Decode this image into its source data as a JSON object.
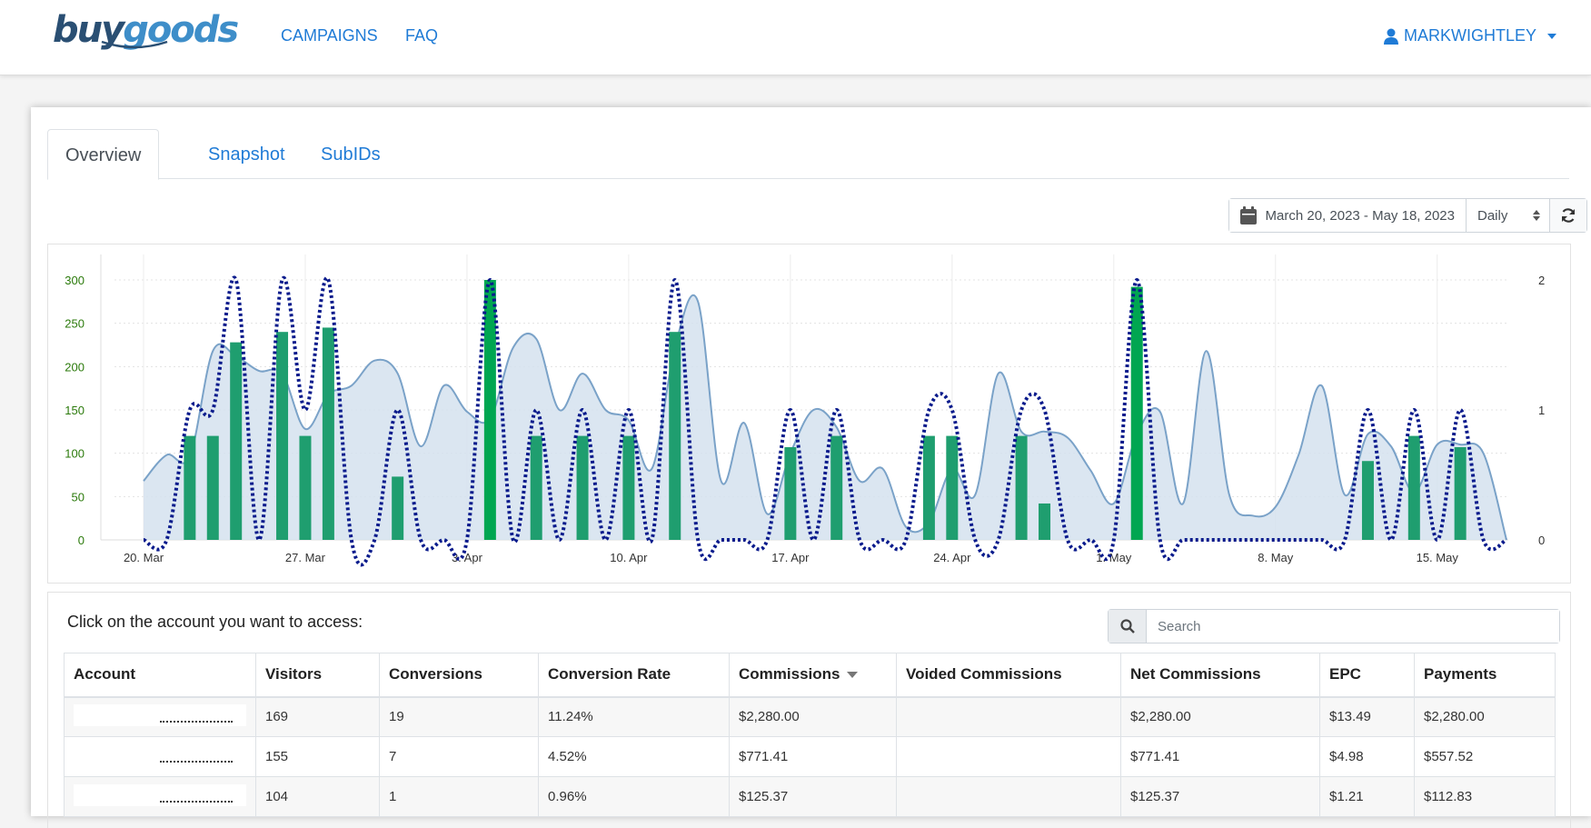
{
  "header": {
    "logo_buy": "buy",
    "logo_goods": "goods",
    "nav": [
      {
        "label": "CAMPAIGNS"
      },
      {
        "label": "FAQ"
      }
    ],
    "user": "MARKWIGHTLEY"
  },
  "tabs": [
    {
      "label": "Overview",
      "active": true
    },
    {
      "label": "Snapshot"
    },
    {
      "label": "SubIDs"
    }
  ],
  "toolbar": {
    "date_range": "March 20, 2023 - May 18, 2023",
    "interval": "Daily"
  },
  "chart_data": {
    "type": "bar",
    "x_start": "2023-03-20",
    "x_end": "2023-05-18",
    "x_ticks": [
      "20. Mar",
      "27. Mar",
      "3. Apr",
      "10. Apr",
      "17. Apr",
      "24. Apr",
      "1. May",
      "8. May",
      "15. May"
    ],
    "y_left_ticks": [
      0,
      50,
      100,
      150,
      200,
      250,
      300
    ],
    "y_left_range": [
      0,
      300
    ],
    "y_right_ticks": [
      0,
      1,
      2
    ],
    "y_right_range": [
      0,
      2
    ],
    "grid": true,
    "colors": {
      "bars": "#1f9e6f",
      "bars_highlight": "#00a651",
      "area_fill": "#d5e2ef",
      "area_line": "#7aa2c8",
      "dotted": "#0a1b8c",
      "left_ticks": "#2b7a0b"
    },
    "series": [
      {
        "type": "column",
        "values": [
          {
            "x": "2023-03-22",
            "y": 120
          },
          {
            "x": "2023-03-23",
            "y": 120
          },
          {
            "x": "2023-03-24",
            "y": 228
          },
          {
            "x": "2023-03-26",
            "y": 240
          },
          {
            "x": "2023-03-27",
            "y": 120
          },
          {
            "x": "2023-03-28",
            "y": 245
          },
          {
            "x": "2023-03-31",
            "y": 73
          },
          {
            "x": "2023-04-04",
            "y": 300
          },
          {
            "x": "2023-04-06",
            "y": 120
          },
          {
            "x": "2023-04-08",
            "y": 120
          },
          {
            "x": "2023-04-10",
            "y": 120
          },
          {
            "x": "2023-04-12",
            "y": 240
          },
          {
            "x": "2023-04-17",
            "y": 107
          },
          {
            "x": "2023-04-19",
            "y": 120
          },
          {
            "x": "2023-04-23",
            "y": 120
          },
          {
            "x": "2023-04-24",
            "y": 120
          },
          {
            "x": "2023-04-27",
            "y": 120
          },
          {
            "x": "2023-04-28",
            "y": 42
          },
          {
            "x": "2023-05-02",
            "y": 292
          },
          {
            "x": "2023-05-12",
            "y": 91
          },
          {
            "x": "2023-05-14",
            "y": 120
          },
          {
            "x": "2023-05-16",
            "y": 107
          }
        ]
      },
      {
        "type": "area",
        "values": [
          {
            "x": "2023-03-20",
            "y": 68
          },
          {
            "x": "2023-03-21",
            "y": 98
          },
          {
            "x": "2023-03-22",
            "y": 96
          },
          {
            "x": "2023-03-23",
            "y": 218
          },
          {
            "x": "2023-03-24",
            "y": 212
          },
          {
            "x": "2023-03-25",
            "y": 195
          },
          {
            "x": "2023-03-26",
            "y": 192
          },
          {
            "x": "2023-03-27",
            "y": 128
          },
          {
            "x": "2023-03-28",
            "y": 168
          },
          {
            "x": "2023-03-29",
            "y": 178
          },
          {
            "x": "2023-03-30",
            "y": 207
          },
          {
            "x": "2023-03-31",
            "y": 192
          },
          {
            "x": "2023-04-01",
            "y": 108
          },
          {
            "x": "2023-04-02",
            "y": 178
          },
          {
            "x": "2023-04-03",
            "y": 148
          },
          {
            "x": "2023-04-04",
            "y": 140
          },
          {
            "x": "2023-04-05",
            "y": 222
          },
          {
            "x": "2023-04-06",
            "y": 232
          },
          {
            "x": "2023-04-07",
            "y": 150
          },
          {
            "x": "2023-04-08",
            "y": 192
          },
          {
            "x": "2023-04-09",
            "y": 150
          },
          {
            "x": "2023-04-10",
            "y": 138
          },
          {
            "x": "2023-04-11",
            "y": 82
          },
          {
            "x": "2023-04-12",
            "y": 222
          },
          {
            "x": "2023-04-13",
            "y": 275
          },
          {
            "x": "2023-04-14",
            "y": 68
          },
          {
            "x": "2023-04-15",
            "y": 135
          },
          {
            "x": "2023-04-16",
            "y": 30
          },
          {
            "x": "2023-04-17",
            "y": 100
          },
          {
            "x": "2023-04-18",
            "y": 150
          },
          {
            "x": "2023-04-19",
            "y": 130
          },
          {
            "x": "2023-04-20",
            "y": 68
          },
          {
            "x": "2023-04-21",
            "y": 82
          },
          {
            "x": "2023-04-22",
            "y": 15
          },
          {
            "x": "2023-04-23",
            "y": 20
          },
          {
            "x": "2023-04-24",
            "y": 82
          },
          {
            "x": "2023-04-25",
            "y": 52
          },
          {
            "x": "2023-04-26",
            "y": 192
          },
          {
            "x": "2023-04-27",
            "y": 125
          },
          {
            "x": "2023-04-28",
            "y": 125
          },
          {
            "x": "2023-04-29",
            "y": 118
          },
          {
            "x": "2023-04-30",
            "y": 80
          },
          {
            "x": "2023-05-01",
            "y": 42
          },
          {
            "x": "2023-05-02",
            "y": 122
          },
          {
            "x": "2023-05-03",
            "y": 148
          },
          {
            "x": "2023-05-04",
            "y": 42
          },
          {
            "x": "2023-05-05",
            "y": 218
          },
          {
            "x": "2023-05-06",
            "y": 52
          },
          {
            "x": "2023-05-07",
            "y": 28
          },
          {
            "x": "2023-05-08",
            "y": 38
          },
          {
            "x": "2023-05-09",
            "y": 98
          },
          {
            "x": "2023-05-10",
            "y": 178
          },
          {
            "x": "2023-05-11",
            "y": 52
          },
          {
            "x": "2023-05-12",
            "y": 122
          },
          {
            "x": "2023-05-13",
            "y": 108
          },
          {
            "x": "2023-05-14",
            "y": 55
          },
          {
            "x": "2023-05-15",
            "y": 110
          },
          {
            "x": "2023-05-16",
            "y": 110
          },
          {
            "x": "2023-05-17",
            "y": 100
          },
          {
            "x": "2023-05-18",
            "y": 0
          }
        ]
      },
      {
        "type": "spline-dotted",
        "axis": "right",
        "values": [
          {
            "x": "2023-03-20",
            "y": 0
          },
          {
            "x": "2023-03-21",
            "y": 0
          },
          {
            "x": "2023-03-22",
            "y": 1
          },
          {
            "x": "2023-03-23",
            "y": 1
          },
          {
            "x": "2023-03-24",
            "y": 2
          },
          {
            "x": "2023-03-25",
            "y": 0
          },
          {
            "x": "2023-03-26",
            "y": 2
          },
          {
            "x": "2023-03-27",
            "y": 1
          },
          {
            "x": "2023-03-28",
            "y": 2
          },
          {
            "x": "2023-03-29",
            "y": 0
          },
          {
            "x": "2023-03-30",
            "y": 0
          },
          {
            "x": "2023-03-31",
            "y": 1
          },
          {
            "x": "2023-04-01",
            "y": 0
          },
          {
            "x": "2023-04-02",
            "y": 0
          },
          {
            "x": "2023-04-03",
            "y": 0
          },
          {
            "x": "2023-04-04",
            "y": 2
          },
          {
            "x": "2023-04-05",
            "y": 0
          },
          {
            "x": "2023-04-06",
            "y": 1
          },
          {
            "x": "2023-04-07",
            "y": 0
          },
          {
            "x": "2023-04-08",
            "y": 1
          },
          {
            "x": "2023-04-09",
            "y": 0
          },
          {
            "x": "2023-04-10",
            "y": 1
          },
          {
            "x": "2023-04-11",
            "y": 0
          },
          {
            "x": "2023-04-12",
            "y": 2
          },
          {
            "x": "2023-04-13",
            "y": 0
          },
          {
            "x": "2023-04-14",
            "y": 0
          },
          {
            "x": "2023-04-15",
            "y": 0
          },
          {
            "x": "2023-04-16",
            "y": 0
          },
          {
            "x": "2023-04-17",
            "y": 1
          },
          {
            "x": "2023-04-18",
            "y": 0
          },
          {
            "x": "2023-04-19",
            "y": 1
          },
          {
            "x": "2023-04-20",
            "y": 0
          },
          {
            "x": "2023-04-21",
            "y": 0
          },
          {
            "x": "2023-04-22",
            "y": 0
          },
          {
            "x": "2023-04-23",
            "y": 1
          },
          {
            "x": "2023-04-24",
            "y": 1
          },
          {
            "x": "2023-04-25",
            "y": 0
          },
          {
            "x": "2023-04-26",
            "y": 0
          },
          {
            "x": "2023-04-27",
            "y": 1
          },
          {
            "x": "2023-04-28",
            "y": 1
          },
          {
            "x": "2023-04-29",
            "y": 0
          },
          {
            "x": "2023-04-30",
            "y": 0
          },
          {
            "x": "2023-05-01",
            "y": 0
          },
          {
            "x": "2023-05-02",
            "y": 2
          },
          {
            "x": "2023-05-03",
            "y": 0
          },
          {
            "x": "2023-05-04",
            "y": 0
          },
          {
            "x": "2023-05-05",
            "y": 0
          },
          {
            "x": "2023-05-06",
            "y": 0
          },
          {
            "x": "2023-05-07",
            "y": 0
          },
          {
            "x": "2023-05-08",
            "y": 0
          },
          {
            "x": "2023-05-09",
            "y": 0
          },
          {
            "x": "2023-05-10",
            "y": 0
          },
          {
            "x": "2023-05-11",
            "y": 0
          },
          {
            "x": "2023-05-12",
            "y": 1
          },
          {
            "x": "2023-05-13",
            "y": 0
          },
          {
            "x": "2023-05-14",
            "y": 1
          },
          {
            "x": "2023-05-15",
            "y": 0
          },
          {
            "x": "2023-05-16",
            "y": 1
          },
          {
            "x": "2023-05-17",
            "y": 0
          },
          {
            "x": "2023-05-18",
            "y": 0
          }
        ]
      }
    ]
  },
  "accounts": {
    "title": "Click on the account you want to access:",
    "search_placeholder": "Search",
    "columns": [
      "Account",
      "Visitors",
      "Conversions",
      "Conversion Rate",
      "Commissions",
      "Voided Commissions",
      "Net Commissions",
      "EPC",
      "Payments"
    ],
    "rows": [
      [
        "",
        "169",
        "19",
        "11.24%",
        "$2,280.00",
        "",
        "$2,280.00",
        "$13.49",
        "$2,280.00"
      ],
      [
        "",
        "155",
        "7",
        "4.52%",
        "$771.41",
        "",
        "$771.41",
        "$4.98",
        "$557.52"
      ],
      [
        "",
        "104",
        "1",
        "0.96%",
        "$125.37",
        "",
        "$125.37",
        "$1.21",
        "$112.83"
      ]
    ]
  }
}
